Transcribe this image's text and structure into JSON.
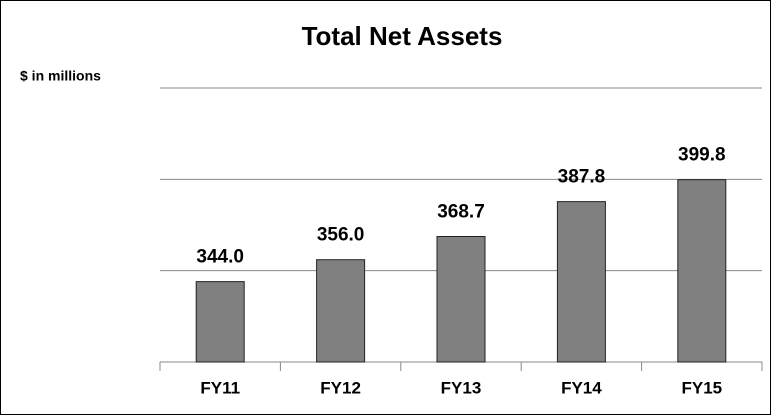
{
  "chart_data": {
    "type": "bar",
    "title": "Total Net Assets",
    "y_label": "$ in millions",
    "categories": [
      "FY11",
      "FY12",
      "FY13",
      "FY14",
      "FY15"
    ],
    "values": [
      344.0,
      356.0,
      368.7,
      387.8,
      399.8
    ],
    "value_labels": [
      "344.0",
      "356.0",
      "368.7",
      "387.8",
      "399.8"
    ],
    "color": "#808080",
    "ylim": [
      300,
      450
    ],
    "yticks": [
      300,
      350,
      400,
      450
    ],
    "grid": true
  }
}
